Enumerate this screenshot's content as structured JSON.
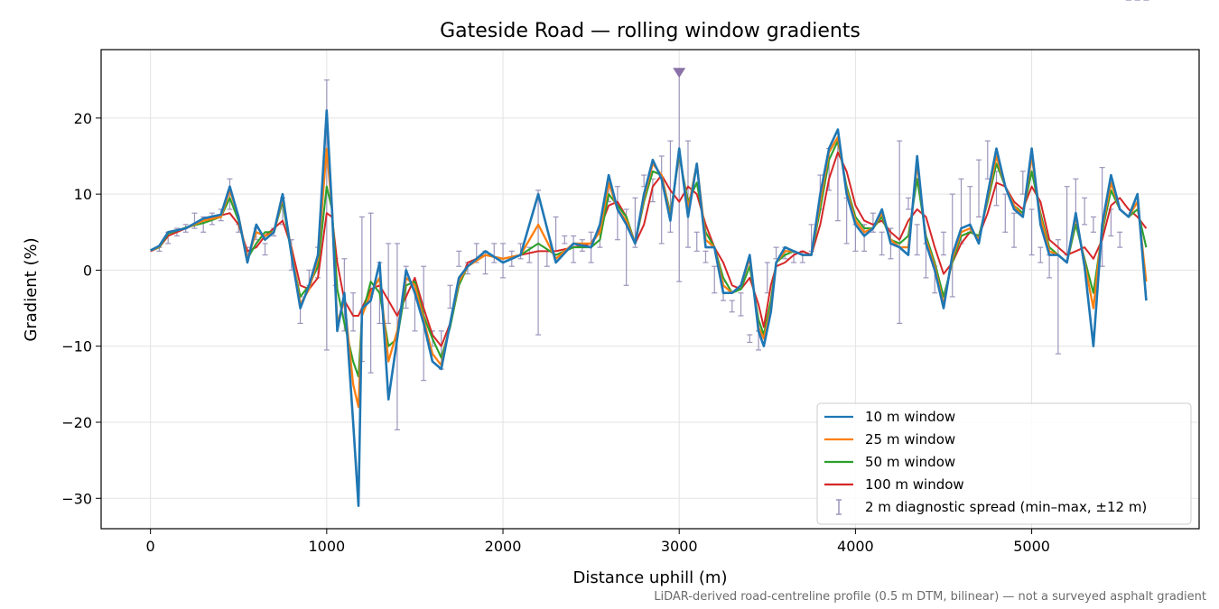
{
  "chart_data": {
    "type": "line",
    "title": "Gateside Road — rolling window gradients",
    "xlabel": "Distance uphill (m)",
    "ylabel": "Gradient (%)",
    "xlim": [
      -280,
      5950
    ],
    "ylim": [
      -34,
      29
    ],
    "x_ticks": [
      0,
      1000,
      2000,
      3000,
      4000,
      5000
    ],
    "y_ticks": [
      -30,
      -20,
      -10,
      0,
      10,
      20
    ],
    "grid": true,
    "legend_position": "lower-right",
    "footnote": "LiDAR-derived road-centreline profile (0.5 m DTM, bilinear) — not a surveyed asphalt gradient",
    "colors": {
      "10 m window": "#1f77b4",
      "25 m window": "#ff7f0e",
      "50 m window": "#2ca02c",
      "100 m window": "#d62728",
      "spread": "#9c95bb",
      "marker": "#8a72a8"
    },
    "series": [
      {
        "name": "100 m window",
        "x": [
          0,
          50,
          100,
          200,
          300,
          400,
          450,
          500,
          550,
          600,
          650,
          700,
          750,
          800,
          850,
          900,
          950,
          1000,
          1030,
          1060,
          1100,
          1150,
          1180,
          1200,
          1250,
          1300,
          1350,
          1400,
          1450,
          1500,
          1550,
          1600,
          1650,
          1700,
          1750,
          1800,
          1900,
          2000,
          2100,
          2200,
          2300,
          2400,
          2500,
          2550,
          2600,
          2650,
          2700,
          2750,
          2800,
          2850,
          2900,
          2950,
          3000,
          3050,
          3100,
          3150,
          3200,
          3250,
          3300,
          3350,
          3400,
          3450,
          3480,
          3520,
          3550,
          3600,
          3650,
          3700,
          3750,
          3800,
          3850,
          3900,
          3950,
          4000,
          4050,
          4100,
          4150,
          4200,
          4250,
          4300,
          4350,
          4400,
          4450,
          4500,
          4550,
          4600,
          4650,
          4700,
          4750,
          4800,
          4850,
          4900,
          4950,
          5000,
          5050,
          5100,
          5150,
          5200,
          5250,
          5300,
          5350,
          5400,
          5450,
          5500,
          5550,
          5600,
          5650
        ],
        "y": [
          2.5,
          3.0,
          4.5,
          5.5,
          6.5,
          7.2,
          7.5,
          6.0,
          2.5,
          3.0,
          4.5,
          5.5,
          6.5,
          3.0,
          -2.0,
          -2.5,
          -1.0,
          7.5,
          7.0,
          1.0,
          -4.0,
          -6.0,
          -6.0,
          -5.0,
          -2.5,
          -2.0,
          -4.0,
          -6.0,
          -3.5,
          -1.0,
          -5.0,
          -8.5,
          -10.0,
          -7.0,
          -2.0,
          1.0,
          2.0,
          1.5,
          2.0,
          2.5,
          2.5,
          3.0,
          3.5,
          5.5,
          8.5,
          9.0,
          7.0,
          3.5,
          6.0,
          11.0,
          12.5,
          10.5,
          9.0,
          11.0,
          10.0,
          6.0,
          3.0,
          1.0,
          -2.0,
          -2.5,
          -1.0,
          -4.5,
          -7.5,
          -2.0,
          0.5,
          1.0,
          2.0,
          2.5,
          2.0,
          6.0,
          12.0,
          15.5,
          13.0,
          8.5,
          6.5,
          6.0,
          6.5,
          5.0,
          4.0,
          6.5,
          8.0,
          7.0,
          3.0,
          -0.5,
          1.0,
          3.5,
          5.0,
          4.5,
          7.5,
          11.5,
          11.0,
          9.0,
          8.0,
          11.0,
          9.0,
          4.0,
          3.0,
          2.0,
          2.5,
          3.0,
          1.5,
          4.0,
          8.5,
          9.5,
          8.0,
          7.0,
          5.5
        ]
      },
      {
        "name": "50 m window",
        "x": [
          0,
          50,
          100,
          200,
          300,
          400,
          450,
          500,
          550,
          600,
          650,
          700,
          750,
          800,
          850,
          900,
          950,
          1000,
          1030,
          1060,
          1100,
          1150,
          1180,
          1200,
          1250,
          1300,
          1350,
          1400,
          1450,
          1500,
          1550,
          1600,
          1650,
          1700,
          1750,
          1800,
          1900,
          2000,
          2100,
          2200,
          2300,
          2400,
          2500,
          2550,
          2600,
          2650,
          2700,
          2750,
          2800,
          2850,
          2900,
          2950,
          3000,
          3050,
          3100,
          3150,
          3200,
          3250,
          3300,
          3350,
          3400,
          3450,
          3480,
          3520,
          3550,
          3600,
          3650,
          3700,
          3750,
          3800,
          3850,
          3900,
          3950,
          4000,
          4050,
          4100,
          4150,
          4200,
          4250,
          4300,
          4350,
          4400,
          4450,
          4500,
          4550,
          4600,
          4650,
          4700,
          4750,
          4800,
          4850,
          4900,
          4950,
          5000,
          5050,
          5100,
          5150,
          5200,
          5250,
          5300,
          5350,
          5400,
          5450,
          5500,
          5550,
          5600,
          5650
        ],
        "y": [
          2.6,
          3.0,
          4.8,
          5.6,
          6.2,
          7.0,
          9.5,
          6.5,
          1.5,
          3.5,
          5.0,
          5.0,
          9.0,
          2.0,
          -3.5,
          -2.0,
          0.5,
          11.0,
          8.0,
          -2.5,
          -7.0,
          -12.0,
          -14.0,
          -6.0,
          -1.5,
          -3.0,
          -10.0,
          -9.0,
          -2.0,
          -1.5,
          -6.0,
          -9.0,
          -11.5,
          -7.5,
          -2.0,
          0.5,
          2.0,
          1.5,
          2.0,
          3.5,
          2.0,
          3.0,
          3.0,
          4.0,
          10.0,
          8.5,
          7.0,
          3.5,
          9.0,
          13.0,
          12.5,
          7.5,
          15.0,
          9.0,
          11.5,
          5.0,
          3.0,
          -1.0,
          -3.0,
          -2.5,
          0.5,
          -6.5,
          -8.5,
          -4.0,
          1.0,
          2.0,
          2.5,
          2.0,
          2.0,
          8.0,
          14.5,
          17.0,
          11.0,
          7.0,
          5.5,
          5.5,
          7.0,
          4.0,
          3.5,
          4.5,
          12.0,
          4.5,
          1.0,
          -3.5,
          1.0,
          4.5,
          5.0,
          4.5,
          9.0,
          14.0,
          11.0,
          8.5,
          7.5,
          13.0,
          7.5,
          3.0,
          2.0,
          1.0,
          6.0,
          1.5,
          -3.0,
          5.0,
          10.5,
          8.0,
          7.0,
          8.0,
          3.0
        ]
      },
      {
        "name": "25 m window",
        "x": [
          0,
          50,
          100,
          200,
          300,
          400,
          450,
          500,
          550,
          600,
          650,
          700,
          750,
          800,
          850,
          900,
          950,
          1000,
          1030,
          1060,
          1100,
          1150,
          1180,
          1200,
          1250,
          1300,
          1350,
          1400,
          1450,
          1500,
          1550,
          1600,
          1650,
          1700,
          1750,
          1800,
          1900,
          2000,
          2100,
          2200,
          2300,
          2400,
          2500,
          2550,
          2600,
          2650,
          2700,
          2750,
          2800,
          2850,
          2900,
          2950,
          3000,
          3050,
          3100,
          3150,
          3200,
          3250,
          3300,
          3350,
          3400,
          3450,
          3480,
          3520,
          3550,
          3600,
          3650,
          3700,
          3750,
          3800,
          3850,
          3900,
          3950,
          4000,
          4050,
          4100,
          4150,
          4200,
          4250,
          4300,
          4350,
          4400,
          4450,
          4500,
          4550,
          4600,
          4650,
          4700,
          4750,
          4800,
          4850,
          4900,
          4950,
          5000,
          5050,
          5100,
          5150,
          5200,
          5250,
          5300,
          5350,
          5400,
          5450,
          5500,
          5550,
          5600,
          5650
        ],
        "y": [
          2.6,
          3.1,
          5.0,
          5.5,
          6.5,
          7.0,
          10.5,
          7.0,
          1.5,
          5.0,
          4.5,
          5.0,
          9.5,
          2.5,
          -4.5,
          -2.5,
          1.5,
          16.0,
          8.0,
          -7.0,
          -4.0,
          -15.0,
          -18.0,
          -6.0,
          -3.0,
          -1.0,
          -12.0,
          -8.0,
          -1.0,
          -2.0,
          -6.5,
          -11.0,
          -12.5,
          -7.0,
          -1.5,
          0.5,
          2.0,
          1.5,
          2.0,
          6.0,
          1.5,
          3.5,
          3.5,
          5.0,
          11.5,
          8.0,
          6.5,
          3.5,
          9.5,
          14.0,
          12.5,
          7.0,
          15.5,
          8.0,
          14.0,
          4.0,
          3.0,
          -2.0,
          -3.0,
          -2.0,
          1.5,
          -7.5,
          -9.0,
          -5.0,
          1.0,
          2.5,
          2.5,
          2.0,
          2.0,
          9.0,
          15.5,
          17.5,
          10.5,
          6.5,
          5.0,
          5.5,
          7.5,
          4.0,
          3.0,
          3.0,
          14.0,
          4.0,
          0.5,
          -4.5,
          1.5,
          5.0,
          5.5,
          4.0,
          9.5,
          15.0,
          11.0,
          8.5,
          7.0,
          15.0,
          7.0,
          2.5,
          2.0,
          1.0,
          7.0,
          1.0,
          -5.0,
          5.5,
          11.5,
          8.0,
          7.0,
          9.0,
          -1.5
        ]
      },
      {
        "name": "10 m window",
        "x": [
          0,
          50,
          100,
          200,
          300,
          400,
          450,
          500,
          550,
          600,
          650,
          700,
          750,
          800,
          850,
          900,
          950,
          1000,
          1030,
          1060,
          1100,
          1150,
          1180,
          1200,
          1250,
          1300,
          1350,
          1400,
          1450,
          1500,
          1550,
          1600,
          1650,
          1700,
          1750,
          1800,
          1900,
          2000,
          2100,
          2200,
          2300,
          2400,
          2500,
          2550,
          2600,
          2650,
          2700,
          2750,
          2800,
          2850,
          2900,
          2950,
          3000,
          3050,
          3100,
          3150,
          3200,
          3250,
          3300,
          3350,
          3400,
          3450,
          3480,
          3520,
          3550,
          3600,
          3650,
          3700,
          3750,
          3800,
          3850,
          3900,
          3950,
          4000,
          4050,
          4100,
          4150,
          4200,
          4250,
          4300,
          4350,
          4400,
          4450,
          4500,
          4550,
          4600,
          4650,
          4700,
          4750,
          4800,
          4850,
          4900,
          4950,
          5000,
          5050,
          5100,
          5150,
          5200,
          5250,
          5300,
          5350,
          5400,
          5450,
          5500,
          5550,
          5600,
          5650
        ],
        "y": [
          2.6,
          3.2,
          5.0,
          5.5,
          6.8,
          7.3,
          11.0,
          7.0,
          1.0,
          6.0,
          4.0,
          5.0,
          10.0,
          2.0,
          -5.0,
          -2.0,
          2.0,
          21.0,
          8.0,
          -8.0,
          -3.0,
          -20.0,
          -31.0,
          -5.0,
          -4.0,
          1.0,
          -17.0,
          -9.0,
          0.0,
          -3.0,
          -7.0,
          -12.0,
          -13.0,
          -7.0,
          -1.0,
          0.5,
          2.5,
          1.0,
          2.0,
          10.0,
          1.0,
          3.5,
          3.0,
          6.0,
          12.5,
          8.0,
          6.0,
          3.5,
          10.0,
          14.5,
          12.0,
          6.5,
          16.0,
          7.0,
          14.0,
          3.0,
          3.0,
          -3.0,
          -3.0,
          -2.0,
          2.0,
          -8.0,
          -10.0,
          -5.5,
          1.0,
          3.0,
          2.5,
          2.0,
          2.0,
          10.0,
          16.0,
          18.5,
          10.0,
          6.0,
          4.5,
          5.5,
          8.0,
          3.5,
          3.0,
          2.0,
          15.0,
          3.5,
          0.0,
          -5.0,
          2.0,
          5.5,
          6.0,
          3.5,
          10.0,
          16.0,
          11.0,
          8.0,
          7.0,
          16.0,
          6.0,
          2.0,
          2.0,
          1.0,
          7.5,
          0.5,
          -10.0,
          6.0,
          12.5,
          8.0,
          7.0,
          10.0,
          -4.0
        ]
      }
    ],
    "spread": {
      "name": "2 m diagnostic spread (min–max, ±12 m)",
      "x": [
        50,
        100,
        150,
        200,
        250,
        300,
        350,
        400,
        450,
        500,
        550,
        600,
        650,
        700,
        750,
        800,
        850,
        900,
        950,
        1000,
        1050,
        1100,
        1150,
        1200,
        1250,
        1300,
        1350,
        1400,
        1450,
        1500,
        1550,
        1600,
        1650,
        1700,
        1750,
        1800,
        1850,
        1900,
        1950,
        2000,
        2050,
        2100,
        2150,
        2200,
        2250,
        2300,
        2350,
        2400,
        2450,
        2500,
        2550,
        2600,
        2650,
        2700,
        2750,
        2800,
        2850,
        2900,
        2950,
        3000,
        3050,
        3100,
        3150,
        3200,
        3250,
        3300,
        3350,
        3400,
        3450,
        3500,
        3550,
        3600,
        3650,
        3700,
        3750,
        3800,
        3850,
        3900,
        3950,
        4000,
        4050,
        4100,
        4150,
        4200,
        4250,
        4300,
        4350,
        4400,
        4450,
        4500,
        4550,
        4600,
        4650,
        4700,
        4750,
        4800,
        4850,
        4900,
        4950,
        5000,
        5050,
        5100,
        5150,
        5200,
        5250,
        5300,
        5350,
        5400,
        5450,
        5500,
        5550,
        5600,
        5650
      ],
      "min": [
        2.5,
        3.5,
        4.5,
        5.0,
        5.5,
        5.0,
        6.0,
        6.5,
        8.0,
        5.0,
        2.0,
        4.0,
        2.0,
        4.5,
        6.0,
        0.0,
        -7.0,
        -2.0,
        -1.0,
        -10.5,
        -2.0,
        -8.0,
        -8.0,
        -12.0,
        -13.5,
        -7.0,
        -7.0,
        -21.0,
        -5.0,
        -8.0,
        -14.5,
        -10.0,
        -13.0,
        -5.0,
        0.5,
        -0.5,
        1.0,
        -0.5,
        1.0,
        -1.0,
        0.5,
        1.5,
        1.0,
        -8.5,
        0.5,
        2.5,
        3.5,
        1.0,
        2.5,
        1.0,
        3.0,
        9.0,
        4.0,
        -2.0,
        3.0,
        11.0,
        9.0,
        3.5,
        5.0,
        -1.5,
        3.0,
        2.5,
        1.0,
        -3.0,
        -4.0,
        -5.5,
        -6.0,
        -9.5,
        -10.5,
        -3.0,
        1.5,
        1.5,
        1.0,
        1.0,
        2.5,
        8.0,
        10.5,
        6.5,
        3.5,
        2.5,
        2.5,
        5.0,
        2.0,
        1.5,
        -7.0,
        8.0,
        2.0,
        -1.0,
        -3.0,
        2.0,
        -3.5,
        3.5,
        5.0,
        7.0,
        12.0,
        8.5,
        5.0,
        3.0,
        10.0,
        2.0,
        1.0,
        -1.0,
        -11.0,
        2.0,
        6.5,
        6.0,
        5.0,
        0.5,
        4.5,
        3.0
      ],
      "max": [
        3.0,
        5.0,
        5.5,
        6.0,
        7.5,
        7.0,
        7.5,
        8.0,
        12.0,
        6.0,
        3.0,
        5.5,
        3.5,
        5.5,
        9.5,
        4.0,
        -3.5,
        0.0,
        3.0,
        25.0,
        1.5,
        1.5,
        -3.0,
        7.0,
        7.5,
        1.0,
        3.5,
        3.5,
        0.5,
        -2.0,
        0.5,
        -8.0,
        -8.0,
        -2.0,
        2.5,
        1.0,
        3.5,
        2.5,
        3.5,
        3.5,
        2.5,
        3.5,
        3.0,
        10.5,
        2.5,
        7.0,
        4.5,
        4.5,
        4.0,
        5.0,
        5.5,
        11.5,
        11.0,
        8.0,
        9.5,
        12.5,
        12.0,
        15.0,
        17.0,
        26.0,
        17.0,
        5.0,
        2.5,
        0.5,
        -1.5,
        -4.0,
        -3.0,
        -8.5,
        -8.0,
        1.0,
        3.0,
        3.0,
        2.5,
        2.5,
        6.0,
        12.5,
        16.0,
        16.5,
        9.5,
        6.0,
        6.0,
        7.5,
        5.0,
        5.5,
        17.0,
        9.5,
        6.0,
        3.5,
        0.5,
        5.0,
        10.0,
        12.0,
        11.0,
        14.5,
        17.0,
        13.0,
        10.0,
        7.5,
        13.0,
        8.0,
        3.0,
        2.0,
        4.0,
        11.0,
        12.0,
        9.5,
        7.0,
        13.5,
        8.0,
        5.0
      ]
    },
    "marker": {
      "x": 3000,
      "y": 26
    }
  }
}
